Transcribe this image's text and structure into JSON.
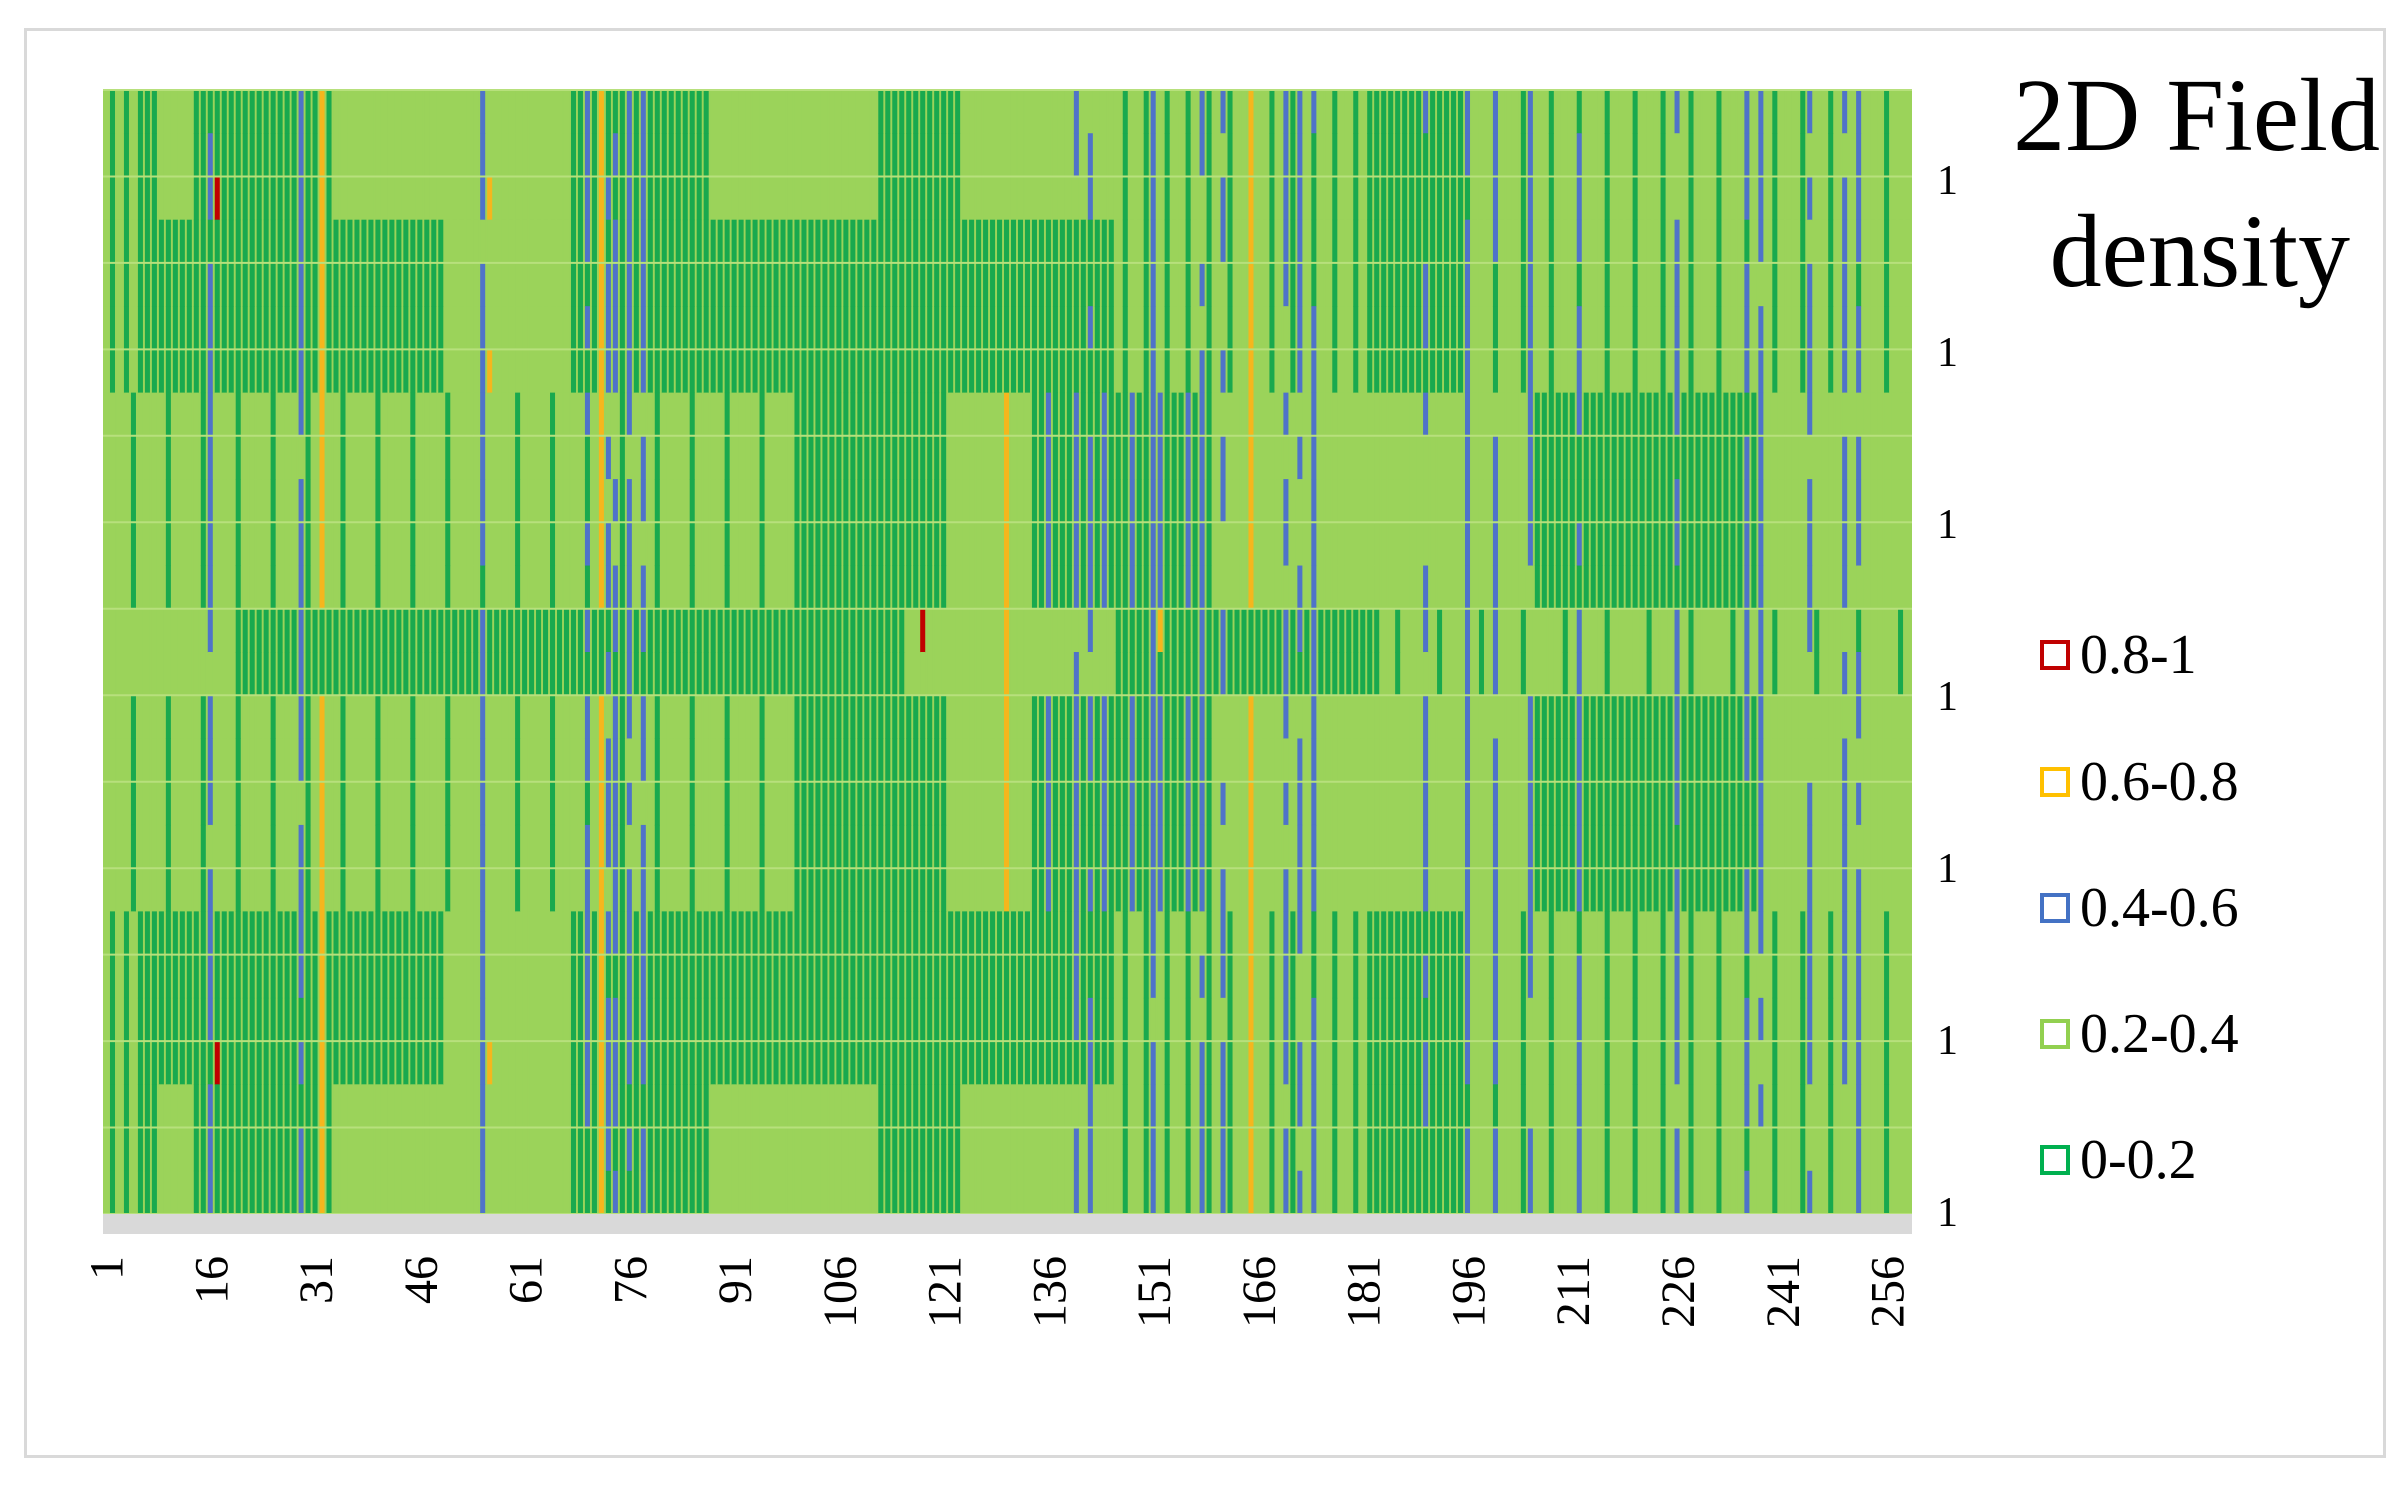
{
  "chart_data": {
    "type": "heatmap",
    "title_lines": [
      "2D Field",
      "density"
    ],
    "x_tick_labels": [
      "1",
      "16",
      "31",
      "46",
      "61",
      "76",
      "91",
      "106",
      "121",
      "136",
      "151",
      "166",
      "181",
      "196",
      "211",
      "226",
      "241",
      "256"
    ],
    "x_range": [
      1,
      259
    ],
    "y_tick_labels": [
      "1",
      "1",
      "1",
      "1",
      "1",
      "1",
      "1"
    ],
    "legend_placement": "right",
    "legend": [
      {
        "label": "0.8-1",
        "color": "#c00000"
      },
      {
        "label": "0.6-0.8",
        "color": "#ffc000"
      },
      {
        "label": "0.4-0.6",
        "color": "#4472c4"
      },
      {
        "label": "0.2-0.4",
        "color": "#92d050"
      },
      {
        "label": "0-0.2",
        "color": "#00b050"
      }
    ],
    "grid": true,
    "colors": {
      "dark_green": "#19a94e",
      "light_green": "#9bd35a",
      "blue": "#4f73c9",
      "orange": "#f5b61d",
      "red": "#c00000",
      "gridline": "#b7e07c",
      "axis_band": "#d9d9d9"
    }
  }
}
